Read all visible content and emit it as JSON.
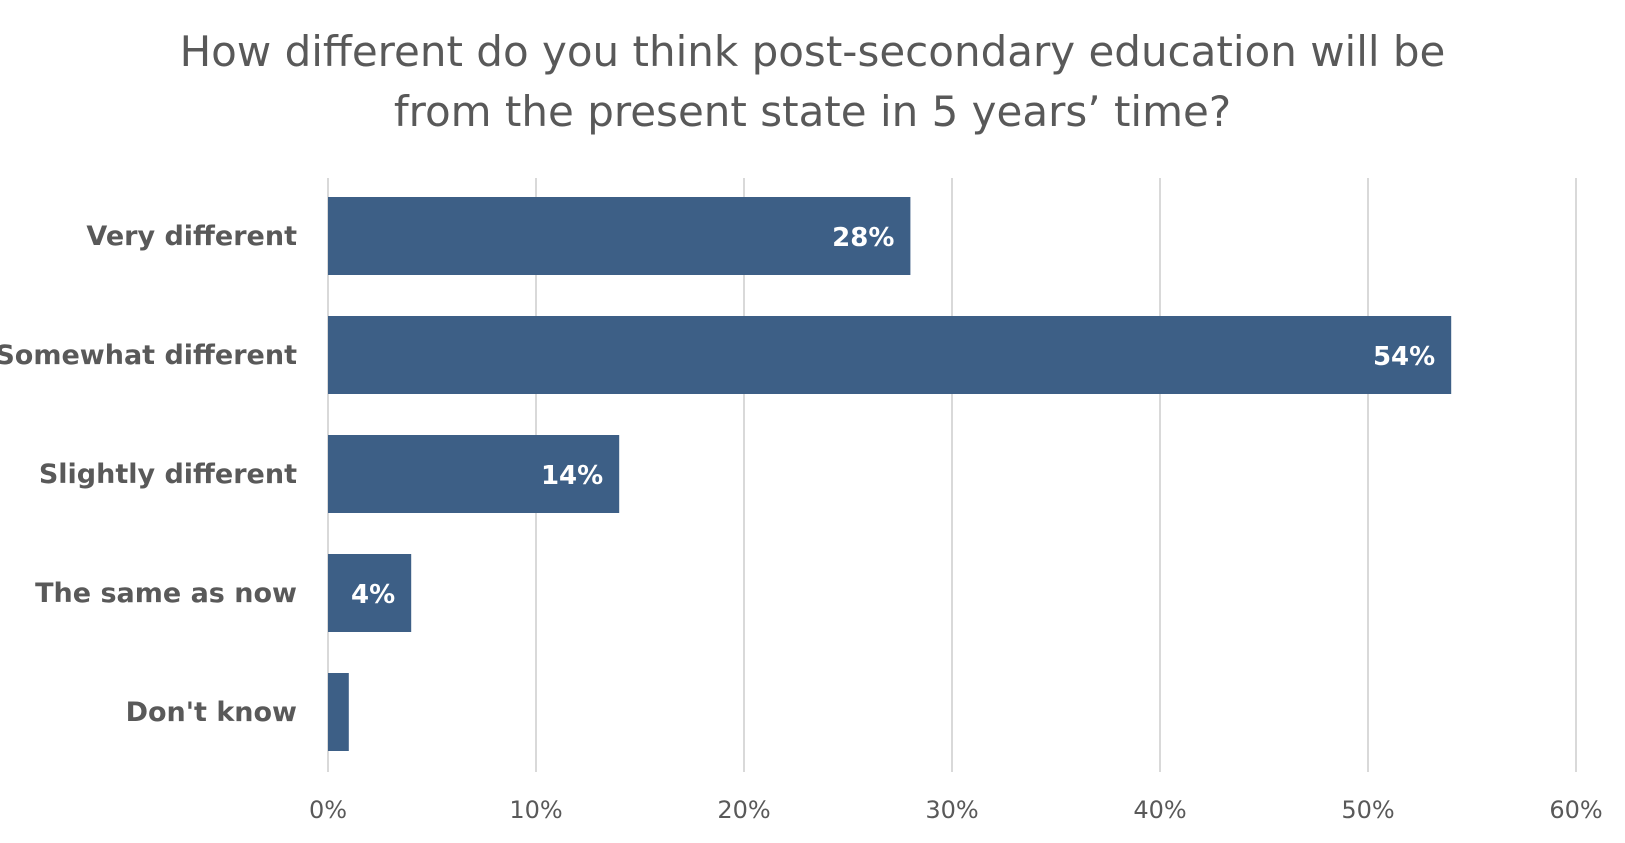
{
  "chart_data": {
    "type": "bar",
    "orientation": "horizontal",
    "title": "How different do you think post-secondary education will be from the present state in 5 years’ time?",
    "title_lines": [
      "How different do you think post-secondary education will be",
      "from the present state in 5 years’ time?"
    ],
    "categories": [
      "Very different",
      "Somewhat different",
      "Slightly different",
      "The same as now",
      "Don't know"
    ],
    "values": [
      28,
      54,
      14,
      4,
      1
    ],
    "data_labels": [
      "28%",
      "54%",
      "14%",
      "4%",
      ""
    ],
    "xlim": [
      0,
      60
    ],
    "x_ticks": [
      0,
      10,
      20,
      30,
      40,
      50,
      60
    ],
    "x_tick_labels": [
      "0%",
      "10%",
      "20%",
      "30%",
      "40%",
      "50%",
      "60%"
    ],
    "xlabel": "",
    "ylabel": "",
    "grid": true,
    "legend": "none",
    "colors": {
      "bar": "#3d5f86",
      "grid": "#d9d9d9",
      "text": "#595959",
      "data_label": "#ffffff"
    }
  }
}
